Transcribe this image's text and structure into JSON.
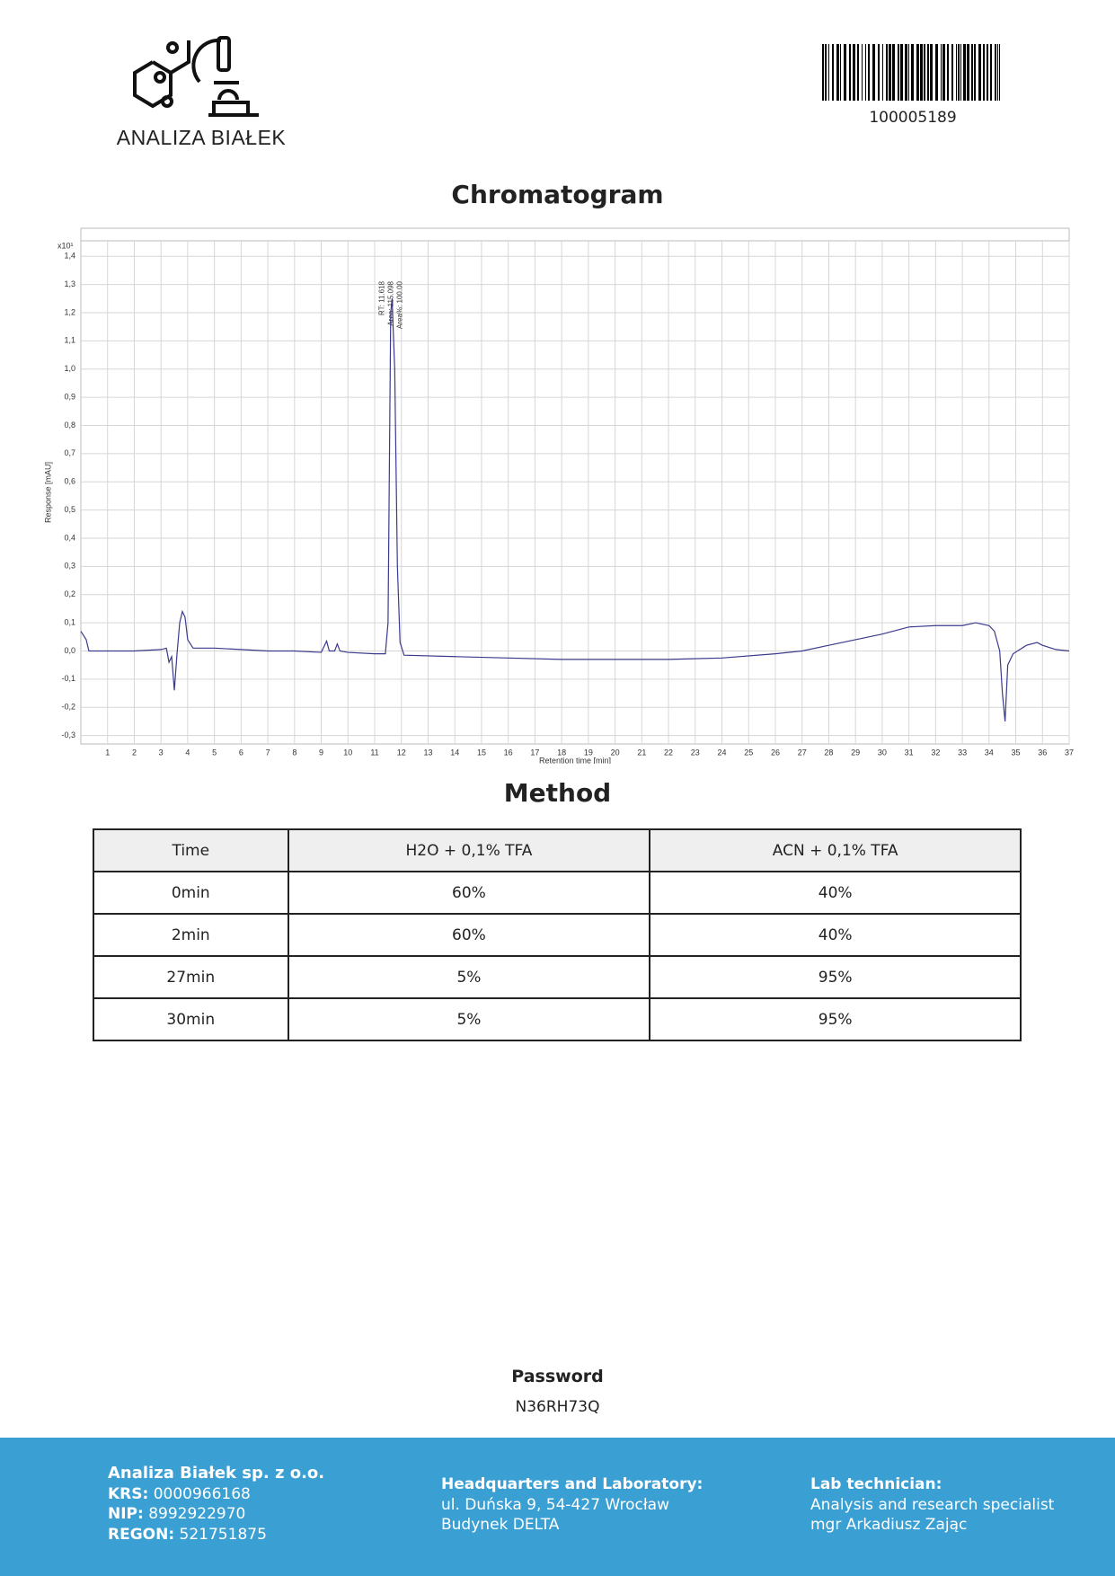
{
  "header": {
    "logo_text": "ANALIZA BIAŁEK",
    "barcode_number": "100005189"
  },
  "chart_data": {
    "type": "line",
    "title": "Chromatogram",
    "y_multiplier": "x10¹",
    "x_label": "Retention time [min]",
    "y_label": "Response [mAU]",
    "annotations": [
      "RT: 11.618",
      "Area: 115.098",
      "Area%: 100.00"
    ],
    "annotation_x": 11.62,
    "color": "#3b3a8c",
    "grid": true,
    "xlim": [
      0,
      37
    ],
    "ylim": [
      -0.33,
      1.455
    ],
    "xticks": [
      1,
      2,
      3,
      4,
      5,
      6,
      7,
      8,
      9,
      10,
      11,
      12,
      13,
      14,
      15,
      16,
      17,
      18,
      19,
      20,
      21,
      22,
      23,
      24,
      25,
      26,
      27,
      28,
      29,
      30,
      31,
      32,
      33,
      34,
      35,
      36,
      37
    ],
    "yticks": [
      {
        "value": -0.3,
        "label": "-0,3"
      },
      {
        "value": -0.2,
        "label": "-0,2"
      },
      {
        "value": -0.1,
        "label": "-0,1"
      },
      {
        "value": 0,
        "label": "0,0"
      },
      {
        "value": 0.1,
        "label": "0,1"
      },
      {
        "value": 0.2,
        "label": "0,2"
      },
      {
        "value": 0.3,
        "label": "0,3"
      },
      {
        "value": 0.4,
        "label": "0,4"
      },
      {
        "value": 0.5,
        "label": "0,5"
      },
      {
        "value": 0.6,
        "label": "0,6"
      },
      {
        "value": 0.7,
        "label": "0,7"
      },
      {
        "value": 0.8,
        "label": "0,8"
      },
      {
        "value": 0.9,
        "label": "0,9"
      },
      {
        "value": 1.0,
        "label": "1,0"
      },
      {
        "value": 1.1,
        "label": "1,1"
      },
      {
        "value": 1.2,
        "label": "1,2"
      },
      {
        "value": 1.3,
        "label": "1,3"
      },
      {
        "value": 1.4,
        "label": "1,4"
      }
    ],
    "x": [
      0,
      0.2,
      0.3,
      0.5,
      1,
      2,
      3,
      3.2,
      3.3,
      3.4,
      3.5,
      3.6,
      3.7,
      3.8,
      3.9,
      4.0,
      4.2,
      5,
      6,
      7,
      8,
      9,
      9.2,
      9.3,
      9.5,
      9.6,
      9.7,
      10,
      11,
      11.4,
      11.5,
      11.6,
      11.65,
      11.75,
      11.85,
      11.95,
      12.1,
      14,
      16,
      18,
      20,
      22,
      24,
      26,
      27,
      28,
      29,
      30,
      31,
      32,
      33,
      33.5,
      34,
      34.2,
      34.4,
      34.5,
      34.6,
      34.7,
      34.9,
      35.4,
      35.8,
      36,
      36.5,
      37
    ],
    "values": [
      0.07,
      0.04,
      0.0,
      0.0,
      0.0,
      0.0,
      0.005,
      0.01,
      -0.04,
      -0.02,
      -0.14,
      -0.01,
      0.1,
      0.14,
      0.12,
      0.04,
      0.01,
      0.01,
      0.005,
      0.0,
      0.0,
      -0.005,
      0.035,
      0.0,
      0.0,
      0.025,
      0.0,
      -0.005,
      -0.01,
      -0.01,
      0.1,
      1.2,
      1.25,
      1.0,
      0.3,
      0.03,
      -0.015,
      -0.02,
      -0.025,
      -0.03,
      -0.03,
      -0.03,
      -0.025,
      -0.01,
      0.0,
      0.02,
      0.04,
      0.06,
      0.085,
      0.09,
      0.09,
      0.1,
      0.09,
      0.07,
      0.0,
      -0.15,
      -0.25,
      -0.05,
      -0.01,
      0.02,
      0.03,
      0.02,
      0.005,
      0.0
    ]
  },
  "method": {
    "title": "Method",
    "table": {
      "header": [
        "Time",
        "H2O + 0,1% TFA",
        "ACN + 0,1% TFA"
      ],
      "rows": [
        [
          "0min",
          "60%",
          "40%"
        ],
        [
          "2min",
          "60%",
          "40%"
        ],
        [
          "27min",
          "5%",
          "95%"
        ],
        [
          "30min",
          "5%",
          "95%"
        ]
      ]
    }
  },
  "password": {
    "label": "Password",
    "value": "N36RH73Q"
  },
  "footer": {
    "company": "Analiza Białek sp. z o.o.",
    "krs_label": "KRS:",
    "krs": "0000966168",
    "nip_label": "NIP:",
    "nip": "8992922970",
    "regon_label": "REGON:",
    "regon": "521751875",
    "hq_title": "Headquarters and Laboratory:",
    "hq_address": "ul. Duńska 9, 54-427 Wrocław",
    "hq_building": "Budynek DELTA",
    "lab_title": "Lab technician:",
    "lab_role": "Analysis and research specialist",
    "lab_name": "mgr Arkadiusz Zając"
  }
}
